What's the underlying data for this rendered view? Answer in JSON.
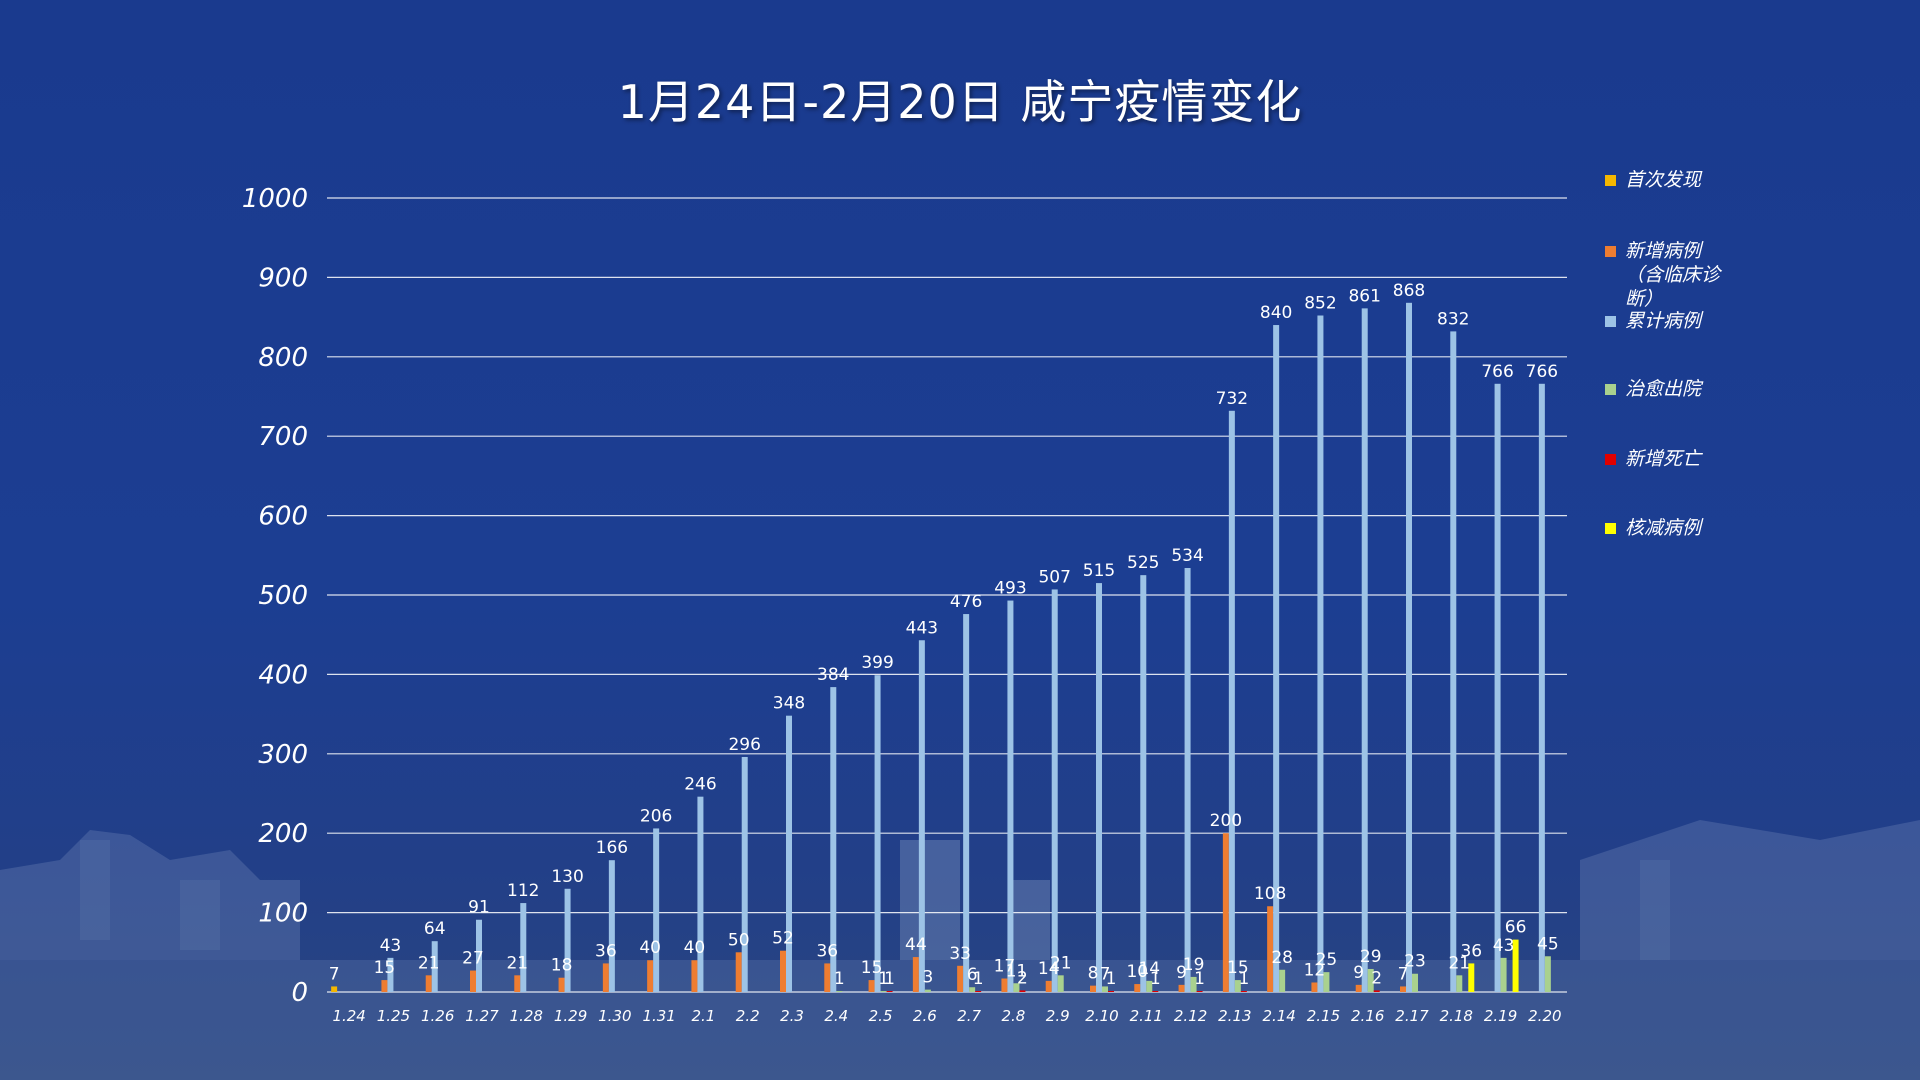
{
  "title": "1月24日-2月20日 咸宁疫情变化",
  "legend": [
    {
      "name": "首次发现",
      "color": "#f5b700"
    },
    {
      "name": "新增病例（含临床诊断）",
      "color": "#ee7d31"
    },
    {
      "name": "累计病例",
      "color": "#9dc3e6"
    },
    {
      "name": "治愈出院",
      "color": "#a9d18e"
    },
    {
      "name": "新增死亡",
      "color": "#e00000"
    },
    {
      "name": "核减病例",
      "color": "#ffff00"
    }
  ],
  "chart_data": {
    "type": "bar",
    "title": "1月24日-2月20日 咸宁疫情变化",
    "xlabel": "",
    "ylabel": "",
    "ylim": [
      0,
      1000
    ],
    "yticks": [
      0,
      100,
      200,
      300,
      400,
      500,
      600,
      700,
      800,
      900,
      1000
    ],
    "grid": true,
    "legend_position": "right",
    "categories": [
      "1.24",
      "1.25",
      "1.26",
      "1.27",
      "1.28",
      "1.29",
      "1.30",
      "1.31",
      "2.1",
      "2.2",
      "2.3",
      "2.4",
      "2.5",
      "2.6",
      "2.7",
      "2.8",
      "2.9",
      "2.10",
      "2.11",
      "2.12",
      "2.13",
      "2.14",
      "2.15",
      "2.16",
      "2.17",
      "2.18",
      "2.19",
      "2.20"
    ],
    "series": [
      {
        "name": "首次发现",
        "color": "#f5b700",
        "values": [
          7,
          null,
          null,
          null,
          null,
          null,
          null,
          null,
          null,
          null,
          null,
          null,
          null,
          null,
          null,
          null,
          null,
          null,
          null,
          null,
          null,
          null,
          null,
          null,
          null,
          null,
          null,
          null
        ]
      },
      {
        "name": "新增病例（含临床诊断）",
        "color": "#ee7d31",
        "values": [
          null,
          15,
          21,
          27,
          21,
          18,
          36,
          40,
          40,
          50,
          52,
          36,
          15,
          44,
          33,
          17,
          14,
          8,
          10,
          9,
          200,
          108,
          12,
          9,
          7,
          null,
          null,
          null
        ]
      },
      {
        "name": "累计病例",
        "color": "#9dc3e6",
        "values": [
          null,
          43,
          64,
          91,
          112,
          130,
          166,
          206,
          246,
          296,
          348,
          384,
          399,
          443,
          476,
          493,
          507,
          515,
          525,
          534,
          732,
          840,
          852,
          861,
          868,
          832,
          766,
          766
        ]
      },
      {
        "name": "治愈出院",
        "color": "#a9d18e",
        "values": [
          null,
          null,
          null,
          null,
          null,
          null,
          null,
          null,
          null,
          null,
          null,
          1,
          1,
          3,
          6,
          11,
          21,
          7,
          14,
          19,
          15,
          28,
          25,
          29,
          23,
          21,
          43,
          45
        ]
      },
      {
        "name": "新增死亡",
        "color": "#e00000",
        "values": [
          null,
          null,
          null,
          null,
          null,
          null,
          null,
          null,
          null,
          null,
          null,
          null,
          1,
          null,
          1,
          2,
          null,
          1,
          1,
          1,
          1,
          null,
          null,
          2,
          null,
          null,
          null,
          null
        ]
      },
      {
        "name": "核减病例",
        "color": "#ffff00",
        "values": [
          null,
          null,
          null,
          null,
          null,
          null,
          null,
          null,
          null,
          null,
          null,
          null,
          null,
          null,
          null,
          null,
          null,
          null,
          null,
          null,
          null,
          null,
          null,
          null,
          null,
          36,
          66,
          null
        ]
      }
    ]
  }
}
